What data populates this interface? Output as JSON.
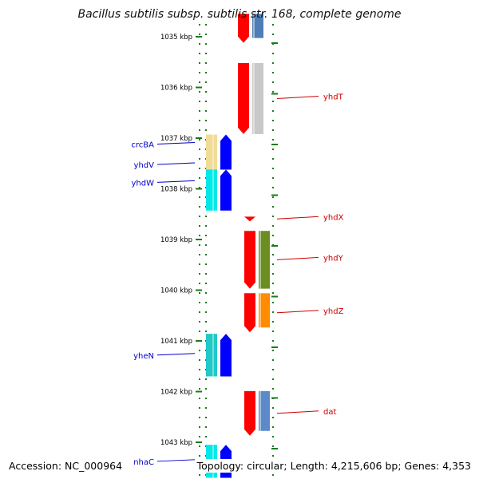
{
  "map": {
    "title": "Bacillus subtilis subsp. subtilis str. 168, complete genome",
    "accession_label": "Accession: NC_000964",
    "info_label": "Topology: circular; Length: 4,215,606 bp; Genes: 4,353",
    "topology": "circular",
    "sequence_length_bp": 4215606,
    "gene_count": 4353,
    "colors": {
      "plus_label": "#cc0000",
      "minus_label": "#0000cc",
      "tick": "#1a7a1a",
      "backbone": "#8c8c8c"
    },
    "ticks": [
      {
        "label": "1035 kbp",
        "kbp": 1035
      },
      {
        "label": "1036 kbp",
        "kbp": 1036
      },
      {
        "label": "1037 kbp",
        "kbp": 1037
      },
      {
        "label": "1038 kbp",
        "kbp": 1038
      },
      {
        "label": "1039 kbp",
        "kbp": 1039
      },
      {
        "label": "1040 kbp",
        "kbp": 1040
      },
      {
        "label": "1041 kbp",
        "kbp": 1041
      },
      {
        "label": "1042 kbp",
        "kbp": 1042
      },
      {
        "label": "1043 kbp",
        "kbp": 1043
      }
    ],
    "genes": [
      {
        "name": "",
        "strand": "+",
        "start_kbp": 1034.55,
        "end_kbp": 1035.12,
        "color": "#ff0000",
        "cog_color": "#4f7eb5",
        "labeled": false
      },
      {
        "name": "yhdT",
        "strand": "+",
        "start_kbp": 1035.52,
        "end_kbp": 1036.92,
        "color": "#ff0000",
        "cog_color": "#c8c8c8",
        "labeled": true
      },
      {
        "name": "crcBA",
        "strand": "-",
        "start_kbp": 1036.93,
        "end_kbp": 1037.62,
        "color": "#0000ff",
        "cog_color": "#f0dc96",
        "labeled": true
      },
      {
        "name": "yhdV",
        "strand": "-",
        "start_kbp": 1037.3,
        "end_kbp": 1037.62,
        "color": "#0000ff",
        "cog_color": "#f0dc96",
        "labeled": true
      },
      {
        "name": "yhdW",
        "strand": "-",
        "start_kbp": 1037.62,
        "end_kbp": 1038.43,
        "color": "#0000ff",
        "cog_color": "#00e8e8",
        "labeled": true
      },
      {
        "name": "yhdX",
        "strand": "+",
        "start_kbp": 1038.55,
        "end_kbp": 1038.64,
        "color": "#ff0000",
        "cog_color": "",
        "labeled": true
      },
      {
        "name": "yhdY",
        "strand": "+",
        "start_kbp": 1038.83,
        "end_kbp": 1039.97,
        "color": "#ff0000",
        "cog_color": "#6b8e23",
        "labeled": true
      },
      {
        "name": "yhdZ",
        "strand": "+",
        "start_kbp": 1040.06,
        "end_kbp": 1040.83,
        "color": "#ff0000",
        "cog_color": "#ff8c00",
        "labeled": true
      },
      {
        "name": "yheN",
        "strand": "-",
        "start_kbp": 1040.86,
        "end_kbp": 1041.7,
        "color": "#0000ff",
        "cog_color": "#20c8c8",
        "labeled": true
      },
      {
        "name": "dat",
        "strand": "+",
        "start_kbp": 1041.99,
        "end_kbp": 1042.87,
        "color": "#ff0000",
        "cog_color": "#5c8ac8",
        "labeled": true
      },
      {
        "name": "nhaC",
        "strand": "-",
        "start_kbp": 1043.05,
        "end_kbp": 1043.7,
        "color": "#0000ff",
        "cog_color": "#00e8e8",
        "labeled": true
      }
    ]
  }
}
